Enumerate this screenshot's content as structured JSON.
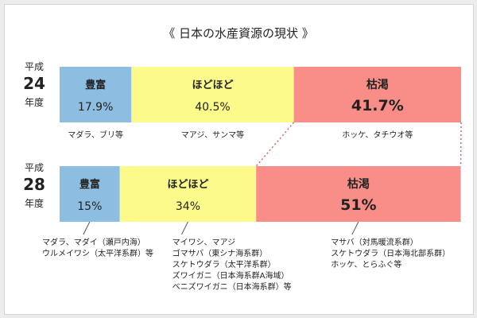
{
  "chart_data": {
    "type": "bar",
    "orientation": "horizontal",
    "stacked": true,
    "percent_stacked": true,
    "title": "《 日本の水産資源の現状 》",
    "categories": [
      "平成24年度",
      "平成28年度"
    ],
    "category_labels": [
      {
        "era": "平成",
        "year": "24",
        "suffix": "年度"
      },
      {
        "era": "平成",
        "year": "28",
        "suffix": "年度"
      }
    ],
    "series": [
      {
        "name": "豊富",
        "values": [
          17.9,
          15
        ],
        "value_labels": [
          "17.9%",
          "15%"
        ],
        "color": "#8dbde0"
      },
      {
        "name": "ほどほど",
        "values": [
          40.5,
          34
        ],
        "value_labels": [
          "40.5%",
          "34%"
        ],
        "color": "#fbfa8a"
      },
      {
        "name": "枯渇",
        "values": [
          41.7,
          51
        ],
        "value_labels": [
          "41.7%",
          "51%"
        ],
        "color": "#f98d87"
      }
    ],
    "annotations": [
      {
        "row": 0,
        "series": 0,
        "lines": [
          "マダラ、ブリ等"
        ]
      },
      {
        "row": 0,
        "series": 1,
        "lines": [
          "マアジ、サンマ等"
        ]
      },
      {
        "row": 0,
        "series": 2,
        "lines": [
          "ホッケ、タチウオ等"
        ]
      },
      {
        "row": 1,
        "series": 0,
        "lines": [
          "マダラ、マダイ（瀬戸内海）",
          "ウルメイワシ（太平洋系群）等"
        ]
      },
      {
        "row": 1,
        "series": 1,
        "lines": [
          "マイワシ、マアジ",
          "ゴマサバ（東シナ海系群）",
          "スケトウダラ（太平洋系群）",
          "ズワイガニ（日本海系群A海域）",
          "ベニズワイガニ（日本海系群）等"
        ]
      },
      {
        "row": 1,
        "series": 2,
        "lines": [
          "マサバ（対馬暖流系群）",
          "スケトウダラ（日本海北部系群）",
          "ホッケ、とらふぐ等"
        ]
      }
    ],
    "connector_between": "枯渇",
    "colors": {
      "frame": "#d4d4d4",
      "dotted": "#e06060",
      "text": "#222222"
    }
  }
}
